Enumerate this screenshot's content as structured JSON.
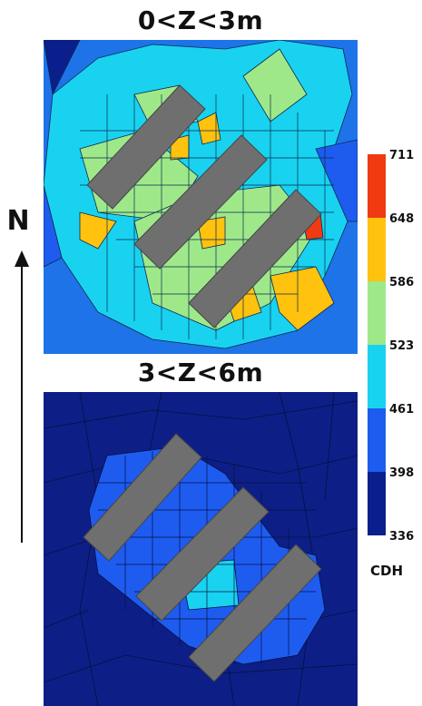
{
  "panels": [
    {
      "title": "0<Z<3m",
      "base_color": "#1e73e8"
    },
    {
      "title": "3<Z<6m",
      "base_color": "#0d1f86"
    }
  ],
  "north_label": "N",
  "colorbar": {
    "unit": "CDH",
    "ticks": [
      "711",
      "648",
      "586",
      "523",
      "461",
      "398",
      "336"
    ],
    "colors": [
      "#ef3a12",
      "#ffc20e",
      "#9ee88a",
      "#19d2f0",
      "#1e5cf0",
      "#0a1f8c"
    ]
  },
  "building": {
    "color": "#6f6f6f"
  }
}
